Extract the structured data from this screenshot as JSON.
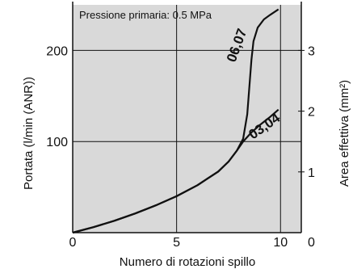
{
  "chart_data": {
    "type": "line",
    "annotation": "Pressione primaria: 0.5 MPa",
    "xlabel": "Numero di rotazioni spillo",
    "ylabel": "Portata (l/min (ANR))",
    "y2label": "Area effettiva (mm²)",
    "xlim": [
      0,
      11
    ],
    "ylim": [
      0,
      250
    ],
    "y2lim": [
      0,
      3.75
    ],
    "x_ticks": [
      0,
      5,
      10
    ],
    "y_ticks": [
      100,
      200
    ],
    "y2_ticks": [
      1,
      2,
      3
    ],
    "y2_zero_label": "0",
    "grid": true,
    "background_color": "#d9d9d9",
    "series": [
      {
        "name": "06,07",
        "x": [
          0,
          1,
          2,
          3,
          4,
          5,
          6,
          7,
          7.5,
          7.9,
          8.2,
          8.4,
          8.5,
          8.6,
          8.7,
          8.9,
          9.2,
          9.5,
          9.9
        ],
        "y": [
          0,
          6,
          13,
          21,
          30,
          40,
          52,
          67,
          78,
          90,
          103,
          130,
          160,
          190,
          210,
          225,
          234,
          239,
          245
        ]
      },
      {
        "name": "03,04",
        "x": [
          0,
          1,
          2,
          3,
          4,
          5,
          6,
          7,
          7.5,
          7.9,
          8.2,
          8.6,
          9.0,
          9.5,
          9.9
        ],
        "y": [
          0,
          6,
          13,
          21,
          30,
          40,
          52,
          67,
          78,
          90,
          100,
          110,
          118,
          127,
          135
        ]
      }
    ]
  }
}
